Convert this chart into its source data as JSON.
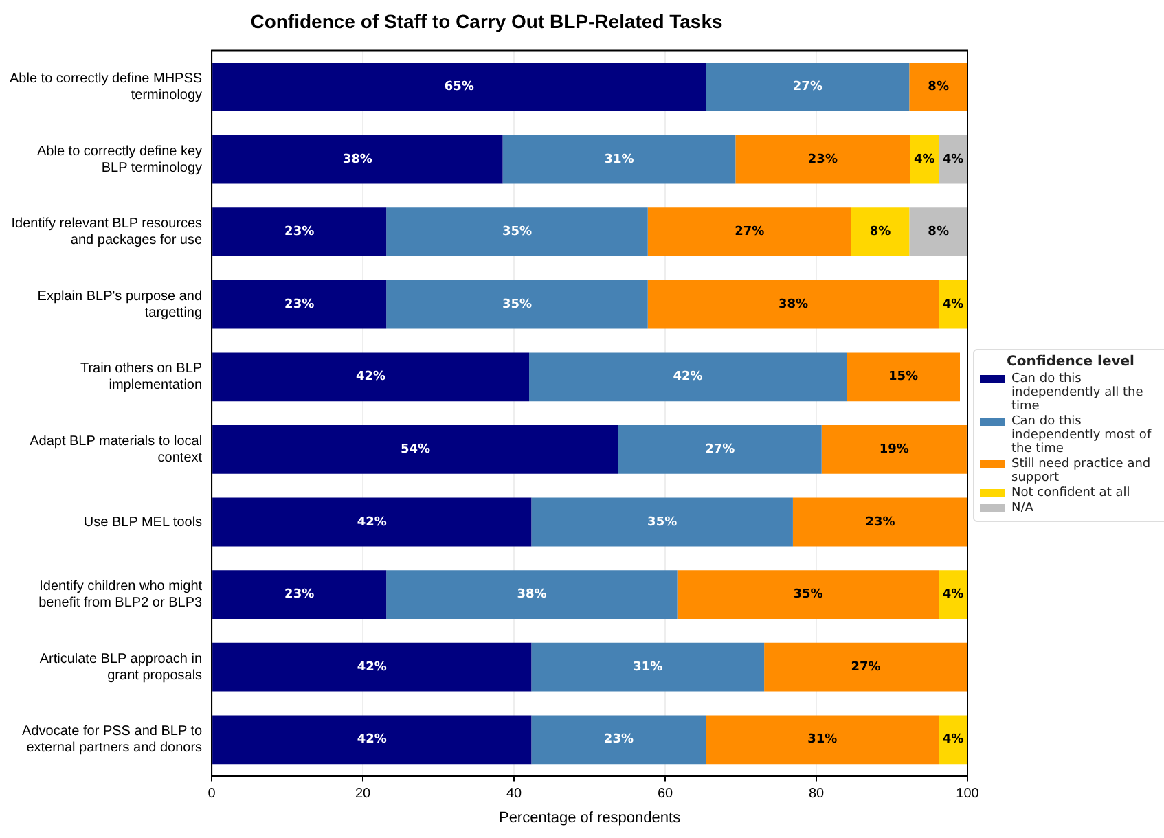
{
  "chart_data": {
    "type": "bar",
    "orientation": "horizontal",
    "stacked": true,
    "title": "Confidence of Staff to Carry Out BLP-Related Tasks",
    "xlabel": "Percentage of respondents",
    "legend_title": "Confidence level",
    "categories": [
      "Able to correctly define MHPSS terminology",
      "Able to correctly define key BLP terminology",
      "Identify relevant BLP resources and packages for use",
      "Explain BLP's purpose and targetting",
      "Train others on BLP implementation",
      "Adapt BLP materials to local context",
      "Use BLP MEL tools",
      "Identify children who might benefit from BLP2 or BLP3",
      "Articulate BLP approach in grant proposals",
      "Advocate for PSS and BLP to external partners and donors"
    ],
    "series": [
      {
        "name": "Can do this independently all the time",
        "color": "#000080",
        "values": [
          65.4,
          38.5,
          23.1,
          23.1,
          42,
          53.8,
          42.3,
          23.1,
          42.3,
          42.3
        ],
        "value_labels": [
          "65%",
          "38%",
          "23%",
          "23%",
          "42%",
          "54%",
          "42%",
          "23%",
          "42%",
          "42%"
        ]
      },
      {
        "name": "Can do this independently most of the time",
        "color": "#4682b4",
        "values": [
          26.9,
          30.8,
          34.6,
          34.6,
          42,
          26.9,
          34.6,
          38.5,
          30.8,
          23.1
        ],
        "value_labels": [
          "27%",
          "31%",
          "35%",
          "35%",
          "42%",
          "27%",
          "35%",
          "38%",
          "31%",
          "23%"
        ]
      },
      {
        "name": "Still need practice and support",
        "color": "#ff8c00",
        "values": [
          7.7,
          23.1,
          26.9,
          38.5,
          15,
          19.2,
          23.1,
          34.6,
          26.9,
          30.8
        ],
        "value_labels": [
          "8%",
          "23%",
          "27%",
          "38%",
          "15%",
          "19%",
          "23%",
          "35%",
          "27%",
          "31%"
        ]
      },
      {
        "name": "Not confident at all",
        "color": "#ffd700",
        "values": [
          null,
          3.8,
          7.7,
          3.8,
          null,
          null,
          null,
          3.8,
          null,
          3.8
        ],
        "value_labels": [
          null,
          "4%",
          "8%",
          "4%",
          null,
          null,
          null,
          "4%",
          null,
          "4%"
        ]
      },
      {
        "name": "N/A",
        "color": "#c0c0c0",
        "values": [
          null,
          3.8,
          7.7,
          null,
          null,
          null,
          null,
          null,
          null,
          null
        ],
        "value_labels": [
          null,
          "4%",
          "8%",
          null,
          null,
          null,
          null,
          null,
          null,
          null
        ]
      }
    ],
    "xlim": [
      0,
      100
    ],
    "xticks": [
      0,
      20,
      40,
      60,
      80,
      100
    ],
    "grid": "x",
    "legend": "right"
  }
}
